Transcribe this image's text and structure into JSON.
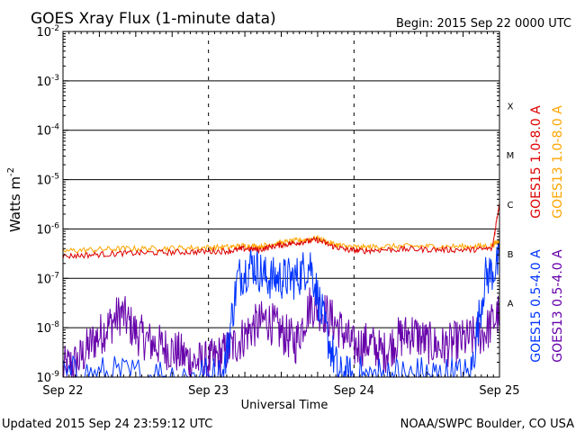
{
  "chart_data": {
    "type": "line",
    "title": "GOES Xray Flux (1-minute data)",
    "begin_label": "Begin:  2015 Sep 22 0000 UTC",
    "xlabel": "Universal Time",
    "ylabel": "Watts m",
    "ylabel_exponent": "-2",
    "log_scale_y": true,
    "ylim": [
      1e-09,
      0.01
    ],
    "y_ticks": [
      {
        "base": "10",
        "exp": "-2"
      },
      {
        "base": "10",
        "exp": "-3"
      },
      {
        "base": "10",
        "exp": "-4"
      },
      {
        "base": "10",
        "exp": "-5"
      },
      {
        "base": "10",
        "exp": "-6"
      },
      {
        "base": "10",
        "exp": "-7"
      },
      {
        "base": "10",
        "exp": "-8"
      },
      {
        "base": "10",
        "exp": "-9"
      }
    ],
    "x_ticks": [
      "Sep 22",
      "Sep 23",
      "Sep 24",
      "Sep 25"
    ],
    "xlim_days": [
      22,
      25
    ],
    "flare_classes": [
      {
        "label": "X",
        "flux": 0.0001
      },
      {
        "label": "M",
        "flux": 1e-05
      },
      {
        "label": "C",
        "flux": 1e-06
      },
      {
        "label": "B",
        "flux": 1e-07
      },
      {
        "label": "A",
        "flux": 1e-08
      }
    ],
    "grid": true,
    "series": [
      {
        "name": "GOES15 1.0-8.0 A",
        "color": "#dd0000",
        "x": [
          22.0,
          22.2,
          22.4,
          22.6,
          22.8,
          23.0,
          23.15,
          23.25,
          23.35,
          23.45,
          23.55,
          23.65,
          23.75,
          23.85,
          23.95,
          24.05,
          24.2,
          24.4,
          24.6,
          24.8,
          24.95,
          25.0
        ],
        "values": [
          2.8e-07,
          3e-07,
          3.2e-07,
          3.3e-07,
          3.4e-07,
          3.5e-07,
          3.6e-07,
          4e-07,
          3.8e-07,
          4.5e-07,
          5e-07,
          5.5e-07,
          6e-07,
          4.5e-07,
          3.8e-07,
          3.6e-07,
          3.8e-07,
          3.9e-07,
          3.8e-07,
          3.8e-07,
          4e-07,
          3.5e-06
        ]
      },
      {
        "name": "GOES13 1.0-8.0 A",
        "color": "#ffa500",
        "x": [
          22.0,
          22.2,
          22.4,
          22.6,
          22.8,
          23.0,
          23.15,
          23.25,
          23.35,
          23.45,
          23.55,
          23.65,
          23.75,
          23.85,
          23.95,
          24.05,
          24.2,
          24.4,
          24.6,
          24.8,
          24.95,
          25.0
        ],
        "values": [
          3.6e-07,
          3.8e-07,
          4e-07,
          4e-07,
          4.1e-07,
          4.2e-07,
          4.3e-07,
          4.6e-07,
          4.4e-07,
          5e-07,
          5.5e-07,
          6e-07,
          6.5e-07,
          5e-07,
          4.4e-07,
          4.2e-07,
          4.4e-07,
          4.5e-07,
          4.4e-07,
          4.4e-07,
          4.6e-07,
          6e-07
        ]
      },
      {
        "name": "GOES15 0.5-4.0 A",
        "color": "#0033ff",
        "x": [
          22.0,
          22.3,
          22.6,
          22.9,
          23.1,
          23.2,
          23.3,
          23.4,
          23.5,
          23.6,
          23.7,
          23.8,
          23.9,
          24.0,
          24.2,
          24.4,
          24.6,
          24.8,
          24.9,
          25.0
        ],
        "values": [
          1e-09,
          1e-09,
          1e-09,
          1e-09,
          1e-09,
          1e-07,
          2e-07,
          1e-07,
          1e-07,
          1e-07,
          2e-07,
          1e-08,
          1e-09,
          1e-09,
          1e-09,
          1e-09,
          1e-09,
          1e-09,
          1e-07,
          2e-07
        ]
      },
      {
        "name": "GOES13 0.5-4.0 A",
        "color": "#6600aa",
        "x": [
          22.0,
          22.1,
          22.2,
          22.3,
          22.4,
          22.5,
          22.6,
          22.7,
          22.8,
          22.9,
          23.0,
          23.1,
          23.2,
          23.3,
          23.4,
          23.5,
          23.6,
          23.7,
          23.8,
          23.9,
          24.0,
          24.1,
          24.2,
          24.3,
          24.4,
          24.5,
          24.6,
          24.7,
          24.8,
          24.9,
          25.0
        ],
        "values": [
          1.5e-09,
          2e-09,
          5e-09,
          1e-08,
          2e-08,
          8e-09,
          5e-09,
          4e-09,
          3e-09,
          2e-09,
          2e-09,
          3e-09,
          5e-09,
          1e-08,
          1.5e-08,
          8e-09,
          5e-09,
          3e-08,
          2e-08,
          1e-08,
          4e-09,
          5e-09,
          3e-09,
          6e-09,
          8e-09,
          5e-09,
          4e-09,
          5e-09,
          6e-09,
          8e-09,
          2e-08
        ]
      }
    ]
  },
  "footer": {
    "updated": "Updated 2015 Sep 24 23:59:12 UTC",
    "credit": "NOAA/SWPC Boulder, CO USA"
  }
}
